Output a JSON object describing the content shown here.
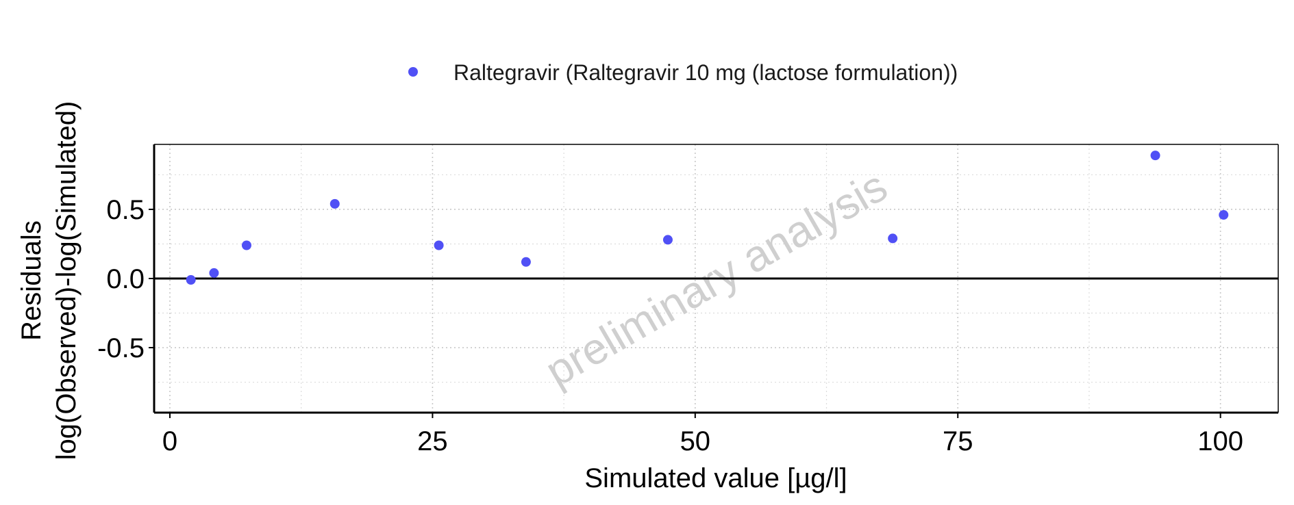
{
  "chart_data": {
    "type": "scatter",
    "title": "",
    "xlabel": "Simulated value [µg/l]",
    "ylabel_line1": "Residuals",
    "ylabel_line2": "log(Observed)-log(Simulated)",
    "xlim": [
      -1.5,
      105.5
    ],
    "ylim": [
      -0.97,
      0.97
    ],
    "x_ticks": [
      0,
      25,
      50,
      75,
      100
    ],
    "x_tick_labels": [
      "0",
      "25",
      "50",
      "75",
      "100"
    ],
    "y_ticks": [
      0.5,
      0.0,
      -0.5
    ],
    "y_tick_labels": [
      "0.5",
      "0.0",
      "-0.5"
    ],
    "x_minor_grid": [
      12.5,
      37.5,
      62.5,
      87.5
    ],
    "y_minor_grid": [
      0.75,
      0.25,
      -0.25,
      -0.75
    ],
    "reference_line_y": 0,
    "grid": true,
    "legend_position": "top-center",
    "watermark": "preliminary analysis",
    "series": [
      {
        "name": "Raltegravir (Raltegravir 10 mg (lactose formulation))",
        "color": "#5050f5",
        "points": [
          {
            "x": 2.0,
            "y": -0.01
          },
          {
            "x": 4.2,
            "y": 0.04
          },
          {
            "x": 7.3,
            "y": 0.24
          },
          {
            "x": 15.7,
            "y": 0.54
          },
          {
            "x": 25.6,
            "y": 0.24
          },
          {
            "x": 33.9,
            "y": 0.12
          },
          {
            "x": 47.4,
            "y": 0.28
          },
          {
            "x": 68.8,
            "y": 0.29
          },
          {
            "x": 93.8,
            "y": 0.89
          },
          {
            "x": 100.3,
            "y": 0.46
          }
        ]
      }
    ]
  }
}
